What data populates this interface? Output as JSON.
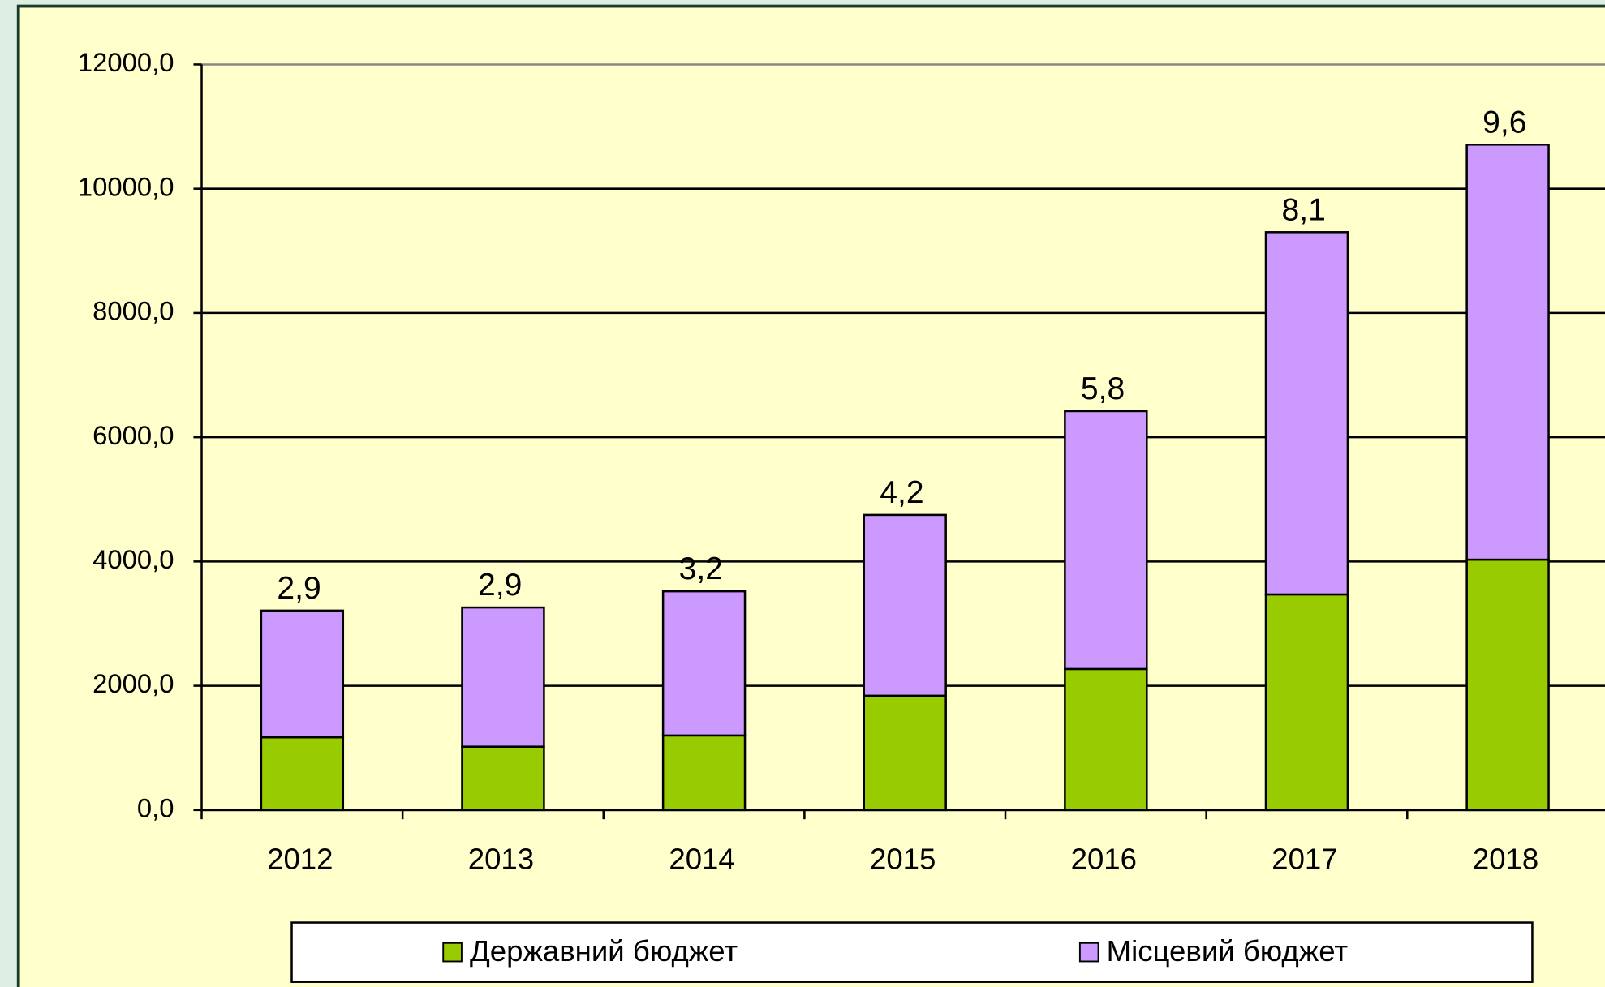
{
  "chart_data": {
    "type": "stacked_bar",
    "categories": [
      "2012",
      "2013",
      "2014",
      "2015",
      "2016",
      "2017",
      "2018"
    ],
    "series": [
      {
        "name": "Державний бюджет",
        "color": "#99cc00",
        "values": [
          1170,
          1020,
          1200,
          1840,
          2270,
          3470,
          4030
        ]
      },
      {
        "name": "Місцевий бюджет",
        "color": "#cc99ff",
        "values": [
          2040,
          2240,
          2320,
          2910,
          4150,
          5830,
          6680
        ]
      }
    ],
    "top_labels": [
      "2,9",
      "2,9",
      "3,2",
      "4,2",
      "5,8",
      "8,1",
      "9,6"
    ],
    "ylim": [
      0,
      12000
    ],
    "yticks": [
      {
        "value": 0,
        "label": "0,0"
      },
      {
        "value": 2000,
        "label": "2000,0"
      },
      {
        "value": 4000,
        "label": "4000,0"
      },
      {
        "value": 6000,
        "label": "6000,0"
      },
      {
        "value": 8000,
        "label": "8000,0"
      },
      {
        "value": 10000,
        "label": "10000,0"
      },
      {
        "value": 12000,
        "label": "12000,0"
      }
    ],
    "grid": true,
    "legend": "bottom"
  }
}
